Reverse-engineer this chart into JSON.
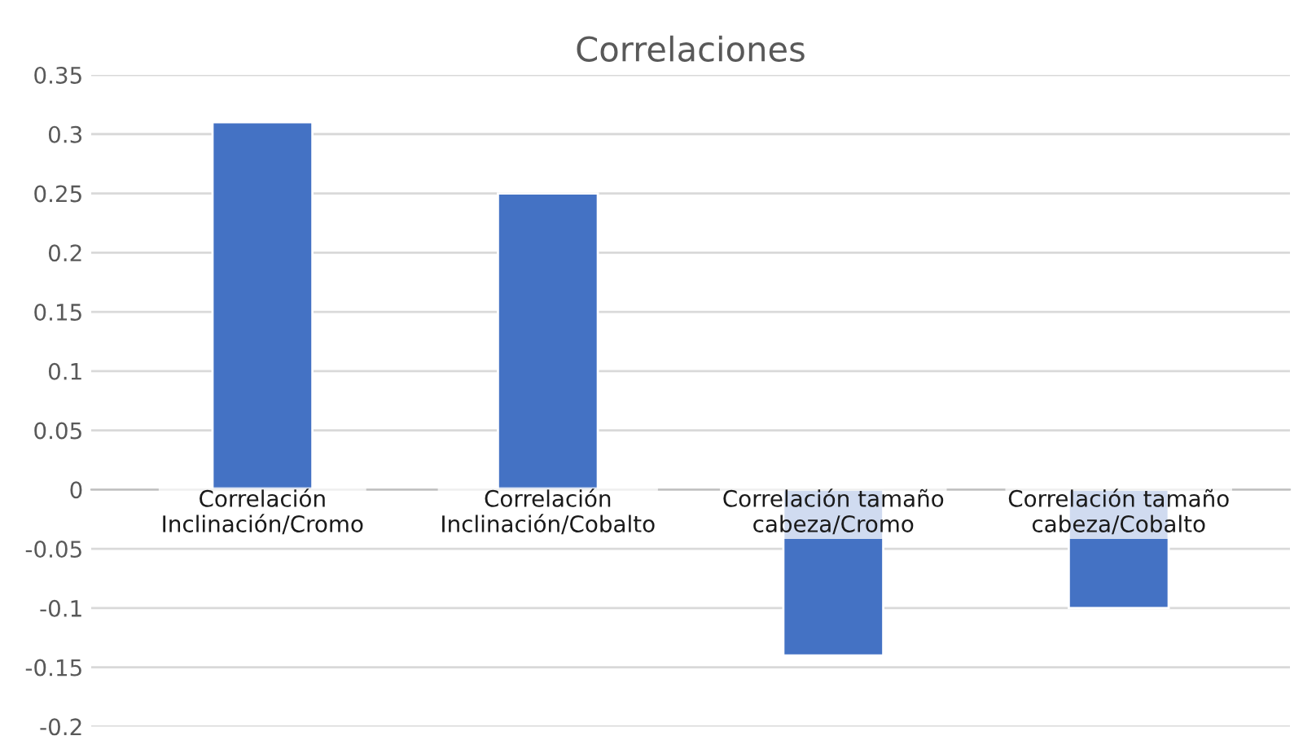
{
  "chart_data": {
    "type": "bar",
    "title": "Correlaciones",
    "categories": [
      "Correlación\nInclinación/Cromo",
      "Correlación\nInclinación/Cobalto",
      "Correlación tamaño\ncabeza/Cromo",
      "Correlación tamaño\ncabeza/Cobalto"
    ],
    "values": [
      0.31,
      0.25,
      -0.14,
      -0.1
    ],
    "color": "#4472c4",
    "ylim": [
      -0.2,
      0.35
    ],
    "yticks": [
      -0.2,
      -0.15,
      -0.1,
      -0.05,
      0,
      0.05,
      0.1,
      0.15,
      0.2,
      0.25,
      0.3,
      0.35
    ],
    "grid": "y"
  }
}
